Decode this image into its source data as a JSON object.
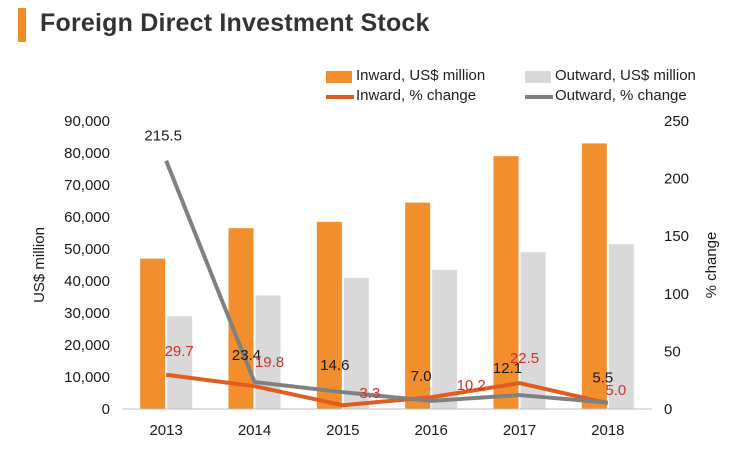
{
  "title": "Foreign Direct Investment Stock",
  "colors": {
    "accent": "#f08a24",
    "inward_bar": "#f28e2b",
    "outward_bar": "#d9d9d9",
    "inward_line": "#e05c1f",
    "outward_line": "#808080",
    "inward_label": "#d0302a",
    "axis_text": "#1a1a1a"
  },
  "legend": {
    "inward_bar": "Inward, US$ million",
    "outward_bar": "Outward, US$ million",
    "inward_line": "Inward, % change",
    "outward_line": "Outward, % change"
  },
  "chart_data": {
    "type": "bar",
    "title": "Foreign Direct Investment Stock",
    "categories": [
      "2013",
      "2014",
      "2015",
      "2016",
      "2017",
      "2018"
    ],
    "ylabel": "US$ million",
    "y2label": "% change",
    "ylim": [
      0,
      90000
    ],
    "y2lim": [
      0,
      250
    ],
    "yticks": [
      "0",
      "10,000",
      "20,000",
      "30,000",
      "40,000",
      "50,000",
      "60,000",
      "70,000",
      "80,000",
      "90,000"
    ],
    "y2ticks": [
      "0",
      "50",
      "100",
      "150",
      "200",
      "250"
    ],
    "series": [
      {
        "name": "Inward, US$ million",
        "kind": "bar",
        "values": [
          47000,
          56500,
          58500,
          64500,
          79000,
          83000
        ]
      },
      {
        "name": "Outward, US$ million",
        "kind": "bar",
        "values": [
          29000,
          35500,
          41000,
          43500,
          49000,
          51500
        ]
      },
      {
        "name": "Inward, % change",
        "kind": "line",
        "axis": "right",
        "values": [
          29.7,
          19.8,
          3.3,
          10.2,
          22.5,
          5.0
        ],
        "labels": [
          "29.7",
          "19.8",
          "3.3",
          "10.2",
          "22.5",
          "5.0"
        ]
      },
      {
        "name": "Outward, % change",
        "kind": "line",
        "axis": "right",
        "values": [
          215.5,
          23.4,
          14.6,
          7.0,
          12.1,
          5.5
        ],
        "labels": [
          "215.5",
          "23.4",
          "14.6",
          "7.0",
          "12.1",
          "5.5"
        ]
      }
    ]
  }
}
